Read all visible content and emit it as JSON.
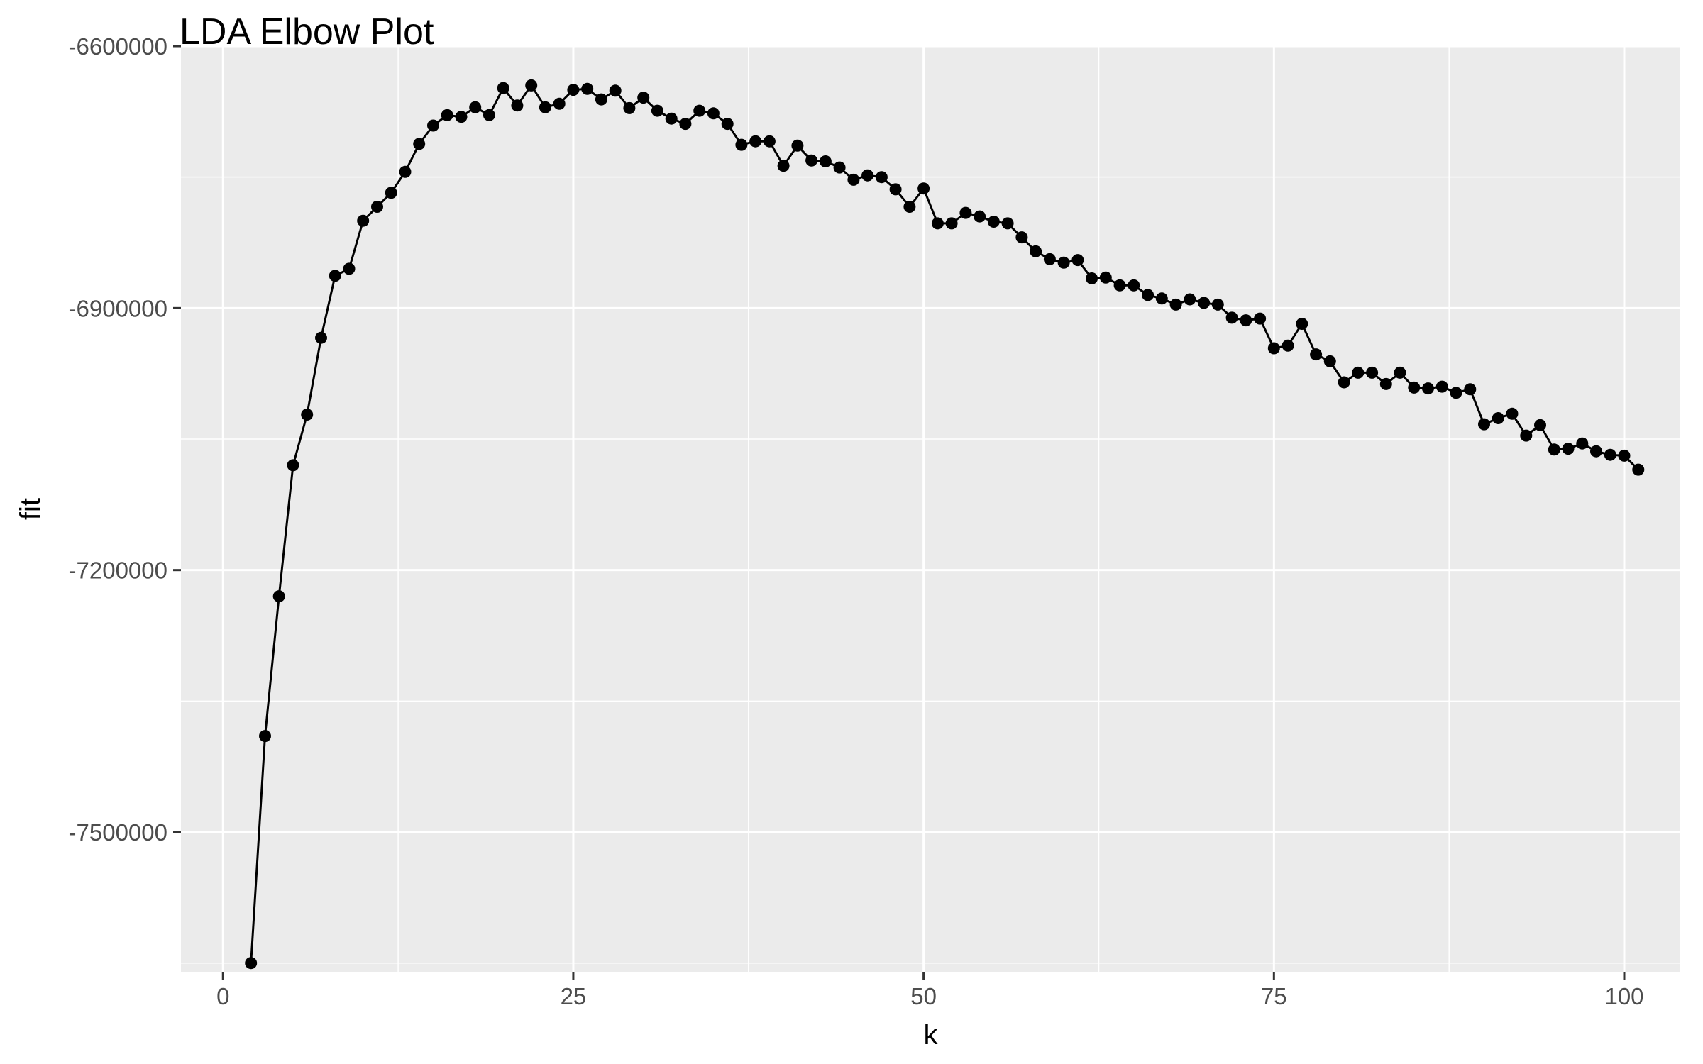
{
  "chart_data": {
    "type": "line",
    "title": "LDA Elbow Plot",
    "xlabel": "k",
    "ylabel": "fit",
    "xlim": [
      -3,
      104
    ],
    "ylim": [
      -7660000,
      -6600000
    ],
    "x_ticks": [
      0,
      25,
      50,
      75,
      100
    ],
    "x_tick_labels": [
      "0",
      "25",
      "50",
      "75",
      "100"
    ],
    "x_minor_ticks": [
      12.5,
      37.5,
      62.5,
      87.5
    ],
    "y_ticks": [
      -6600000,
      -6900000,
      -7200000,
      -7500000
    ],
    "y_tick_labels": [
      "-6600000",
      "-6900000",
      "-7200000",
      "-7500000"
    ],
    "y_minor_ticks": [
      -6750000,
      -7050000,
      -7350000,
      -7650000
    ],
    "grid": true,
    "legend": "none",
    "colors": {
      "panel_background": "#ebebeb",
      "grid_line": "#ffffff",
      "series": "#000000",
      "tick_label": "#4d4d4d",
      "tick_mark": "#333333"
    },
    "series": [
      {
        "markers": true,
        "x": [
          2,
          3,
          4,
          5,
          6,
          7,
          8,
          9,
          10,
          11,
          12,
          13,
          14,
          15,
          16,
          17,
          18,
          19,
          20,
          21,
          22,
          23,
          24,
          25,
          26,
          27,
          28,
          29,
          30,
          31,
          32,
          33,
          34,
          35,
          36,
          37,
          38,
          39,
          40,
          41,
          42,
          43,
          44,
          45,
          46,
          47,
          48,
          49,
          50,
          51,
          52,
          53,
          54,
          55,
          56,
          57,
          58,
          59,
          60,
          61,
          62,
          63,
          64,
          65,
          66,
          67,
          68,
          69,
          70,
          71,
          72,
          73,
          74,
          75,
          76,
          77,
          78,
          79,
          80,
          81,
          82,
          83,
          84,
          85,
          86,
          87,
          88,
          89,
          90,
          91,
          92,
          93,
          94,
          95,
          96,
          97,
          98,
          99,
          100,
          101
        ],
        "y": [
          -7650000,
          -7390000,
          -7230000,
          -7080000,
          -7022000,
          -6934000,
          -6863000,
          -6855000,
          -6800000,
          -6784000,
          -6768000,
          -6744000,
          -6712000,
          -6691000,
          -6679000,
          -6681000,
          -6670000,
          -6679000,
          -6648000,
          -6668000,
          -6645000,
          -6670000,
          -6666000,
          -6650000,
          -6649000,
          -6661000,
          -6651000,
          -6671000,
          -6659000,
          -6674000,
          -6683000,
          -6689000,
          -6674000,
          -6677000,
          -6689000,
          -6713000,
          -6709000,
          -6709000,
          -6737000,
          -6714000,
          -6731000,
          -6732000,
          -6739000,
          -6753000,
          -6748000,
          -6750000,
          -6764000,
          -6784000,
          -6763000,
          -6803000,
          -6803000,
          -6791000,
          -6795000,
          -6801000,
          -6803000,
          -6819000,
          -6835000,
          -6844000,
          -6848000,
          -6845000,
          -6866000,
          -6865000,
          -6874000,
          -6874000,
          -6885000,
          -6889000,
          -6896000,
          -6890000,
          -6894000,
          -6896000,
          -6911000,
          -6914000,
          -6912000,
          -6946000,
          -6943000,
          -6918000,
          -6953000,
          -6961000,
          -6985000,
          -6974000,
          -6974000,
          -6987000,
          -6974000,
          -6991000,
          -6992000,
          -6990000,
          -6997000,
          -6993000,
          -7033000,
          -7026000,
          -7021000,
          -7046000,
          -7034000,
          -7062000,
          -7061000,
          -7055000,
          -7064000,
          -7068000,
          -7069000,
          -7085000
        ]
      }
    ]
  }
}
